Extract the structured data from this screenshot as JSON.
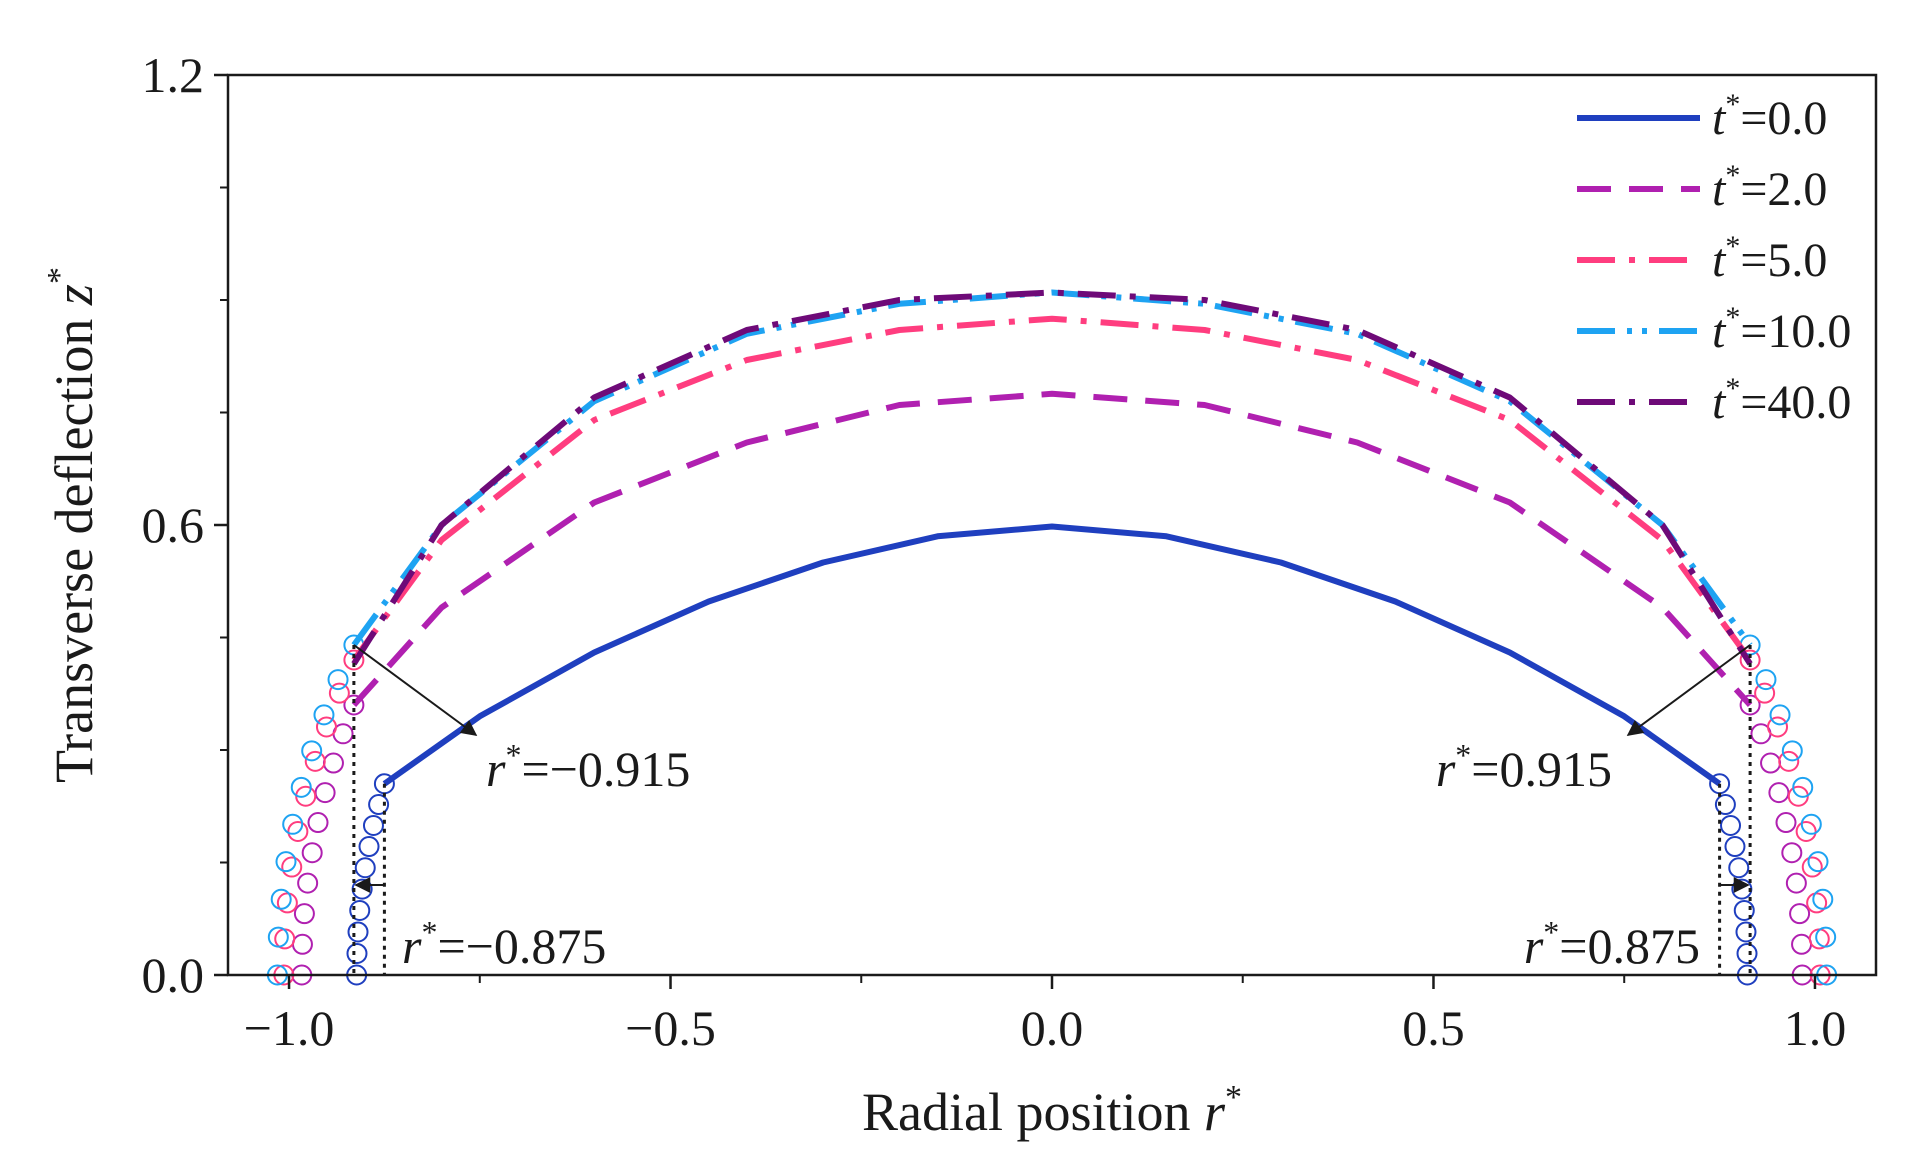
{
  "chart_data": {
    "type": "line",
    "title": "",
    "xlabel": "Radial position",
    "xlabel_var": "r",
    "ylabel": "Transverse deflection",
    "ylabel_var": "z",
    "superscript": "*",
    "xlim": [
      -1.08,
      1.08
    ],
    "ylim": [
      0.0,
      1.2
    ],
    "xticks": [
      -1.0,
      -0.5,
      0.0,
      0.5,
      1.0
    ],
    "xtick_labels": [
      "−1.0",
      "−0.5",
      "0.0",
      "0.5",
      "1.0"
    ],
    "yticks": [
      0.0,
      0.6,
      1.2
    ],
    "ytick_labels": [
      "0.0",
      "0.6",
      "1.2"
    ],
    "legend_position": "top-right",
    "series": [
      {
        "name": "t*=0.0",
        "label_var": "t",
        "label_value": "=0.0",
        "color": "#1f3fbf",
        "dash": "solid",
        "x": [
          -0.875,
          -0.75,
          -0.6,
          -0.45,
          -0.3,
          -0.15,
          0.0,
          0.15,
          0.3,
          0.45,
          0.6,
          0.75,
          0.875
        ],
        "y": [
          0.255,
          0.345,
          0.43,
          0.498,
          0.55,
          0.585,
          0.598,
          0.585,
          0.55,
          0.498,
          0.43,
          0.345,
          0.255
        ]
      },
      {
        "name": "t*=2.0",
        "label_var": "t",
        "label_value": "=2.0",
        "color": "#b020b0",
        "dash": "dash",
        "x": [
          -0.915,
          -0.8,
          -0.6,
          -0.4,
          -0.2,
          0.0,
          0.2,
          0.4,
          0.6,
          0.8,
          0.915
        ],
        "y": [
          0.36,
          0.49,
          0.63,
          0.71,
          0.76,
          0.775,
          0.76,
          0.71,
          0.63,
          0.49,
          0.36
        ]
      },
      {
        "name": "t*=5.0",
        "label_var": "t",
        "label_value": "=5.0",
        "color": "#ff3d7f",
        "dash": "dashdot",
        "x": [
          -0.915,
          -0.8,
          -0.6,
          -0.4,
          -0.2,
          0.0,
          0.2,
          0.4,
          0.6,
          0.8,
          0.915
        ],
        "y": [
          0.42,
          0.58,
          0.74,
          0.82,
          0.86,
          0.875,
          0.86,
          0.82,
          0.74,
          0.58,
          0.42
        ]
      },
      {
        "name": "t*=10.0",
        "label_var": "t",
        "label_value": "=10.0",
        "color": "#1ea3f2",
        "dash": "dashdotdot",
        "x": [
          -0.915,
          -0.8,
          -0.6,
          -0.4,
          -0.2,
          0.0,
          0.2,
          0.4,
          0.6,
          0.8,
          0.915
        ],
        "y": [
          0.44,
          0.6,
          0.765,
          0.855,
          0.895,
          0.91,
          0.895,
          0.855,
          0.765,
          0.6,
          0.44
        ]
      },
      {
        "name": "t*=40.0",
        "label_var": "t",
        "label_value": "=40.0",
        "color": "#6e0a78",
        "dash": "dashdot",
        "x": [
          -0.915,
          -0.8,
          -0.6,
          -0.4,
          -0.2,
          0.0,
          0.2,
          0.4,
          0.6,
          0.8,
          0.915
        ],
        "y": [
          0.415,
          0.6,
          0.77,
          0.86,
          0.9,
          0.91,
          0.9,
          0.86,
          0.77,
          0.6,
          0.415
        ]
      }
    ],
    "circle_markers": [
      {
        "color": "#1f3fbf",
        "r_start": 0.875,
        "y_start": 0.255
      },
      {
        "color": "#b020b0",
        "r_start": 0.915,
        "y_start": 0.36
      },
      {
        "color": "#ff3d7f",
        "r_start": 0.915,
        "y_start": 0.42
      },
      {
        "color": "#1ea3f2",
        "r_start": 0.915,
        "y_start": 0.44
      }
    ],
    "annotations": [
      {
        "label_var": "r",
        "label_value": "=−0.915",
        "x": -0.915,
        "side": "left"
      },
      {
        "label_var": "r",
        "label_value": "=0.915",
        "x": 0.915,
        "side": "right"
      },
      {
        "label_var": "r",
        "label_value": "=−0.875",
        "x": -0.875,
        "side": "left"
      },
      {
        "label_var": "r",
        "label_value": "=0.875",
        "x": 0.875,
        "side": "right"
      }
    ]
  }
}
